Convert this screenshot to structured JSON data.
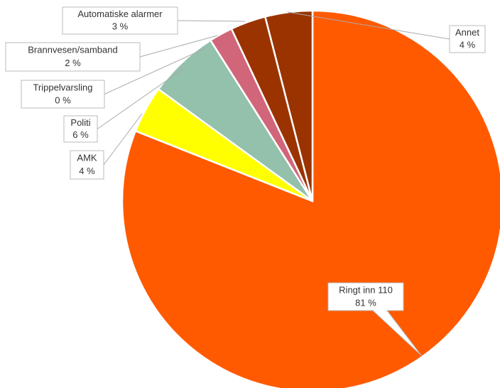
{
  "chart_data": {
    "type": "pie",
    "categories": [
      "Ringt inn 110",
      "AMK",
      "Politi",
      "Trippelvarsling",
      "Brannvesen/samband",
      "Automatiske alarmer",
      "Annet"
    ],
    "values": [
      81,
      4,
      6,
      0,
      2,
      3,
      4
    ],
    "value_labels": [
      "81 %",
      "4 %",
      "6 %",
      "0 %",
      "2 %",
      "3 %",
      "4 %"
    ],
    "colors": [
      "#ff5a00",
      "#ffff00",
      "#93c1ab",
      "#44677f",
      "#d1667a",
      "#9a3300",
      "#9a3300"
    ]
  }
}
